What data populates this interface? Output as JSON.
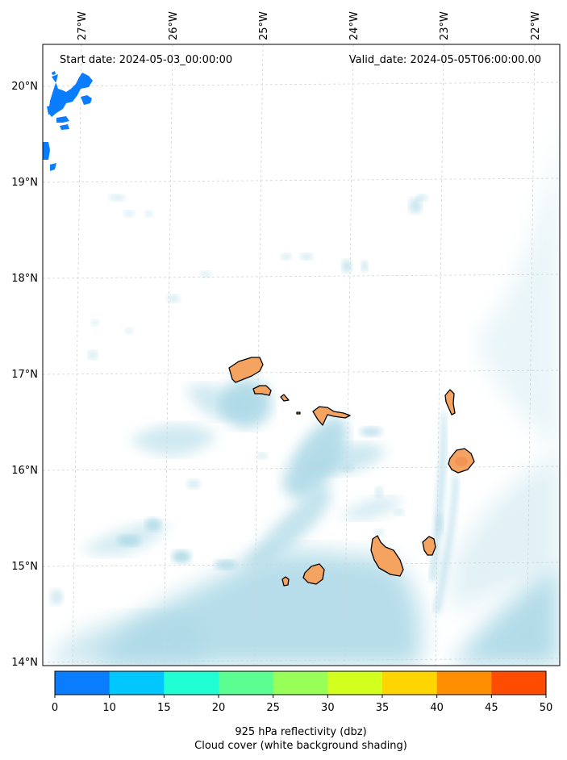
{
  "header": {
    "start_date": "Start date: 2024-05-03_00:00:00",
    "valid_date": "Valid_date: 2024-05-05T06:00:00.00"
  },
  "axes": {
    "longitude_labels": [
      "27°W",
      "26°W",
      "25°W",
      "24°W",
      "23°W",
      "22°W"
    ],
    "latitude_labels": [
      "20°N",
      "19°N",
      "18°N",
      "17°N",
      "16°N",
      "15°N",
      "14°N"
    ]
  },
  "colorbar": {
    "ticks": [
      "0",
      "10",
      "15",
      "20",
      "25",
      "30",
      "35",
      "40",
      "45",
      "50"
    ],
    "colors": [
      "#0a7dff",
      "#00c8ff",
      "#20ffd4",
      "#5cff92",
      "#98ff58",
      "#d2ff1e",
      "#ffd500",
      "#ff8e00",
      "#ff4c00"
    ],
    "label_line1": "925 hPa reflectivity (dbz)",
    "label_line2": "Cloud cover (white background shading)"
  },
  "colors": {
    "land": "#f4a460",
    "cloud": "#aad8e6",
    "reflectivity_10_15": "#0a7dff",
    "coast": "#000000",
    "grid": "#d3d3d3"
  },
  "map": {
    "islands": [
      "Santo Antão",
      "São Vicente",
      "Santa Luzia",
      "São Nicolau",
      "Sal",
      "Boa Vista",
      "Maio",
      "Santiago",
      "Fogo",
      "Brava"
    ],
    "gridlines": true
  }
}
